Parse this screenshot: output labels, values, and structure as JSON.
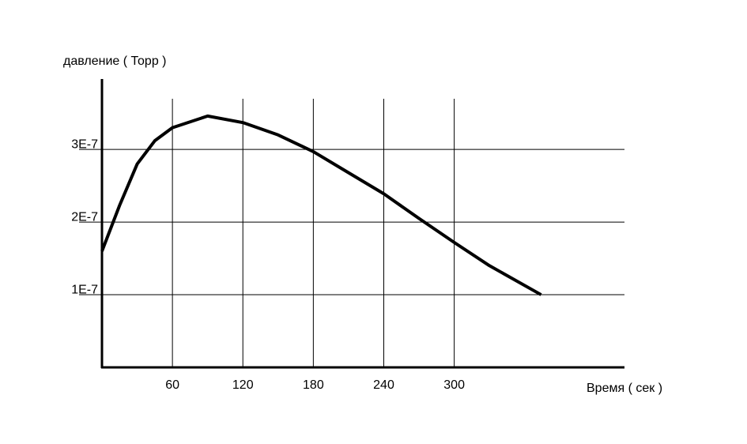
{
  "chart_data": {
    "type": "line",
    "y_label": "давление ( Торр )",
    "x_label": "Время ( сек )",
    "x": [
      0,
      15,
      30,
      45,
      60,
      90,
      120,
      150,
      180,
      210,
      240,
      270,
      300,
      330,
      374
    ],
    "series": [
      {
        "color": "#000000",
        "values": [
          1.6e-07,
          2.23e-07,
          2.8e-07,
          3.12e-07,
          3.3e-07,
          3.46e-07,
          3.37e-07,
          3.2e-07,
          2.97e-07,
          2.68e-07,
          2.39e-07,
          2.05e-07,
          1.72e-07,
          1.4e-07,
          1e-07
        ]
      }
    ],
    "xlim": [
      0,
      445
    ],
    "ylim": [
      0,
      3.97e-07
    ],
    "xticks": [
      60,
      120,
      180,
      240,
      300
    ],
    "yticks": [
      {
        "value": 1e-07,
        "label": "1E-7"
      },
      {
        "value": 2e-07,
        "label": "2E-7"
      },
      {
        "value": 3e-07,
        "label": "3E-7"
      }
    ],
    "grid": true
  }
}
